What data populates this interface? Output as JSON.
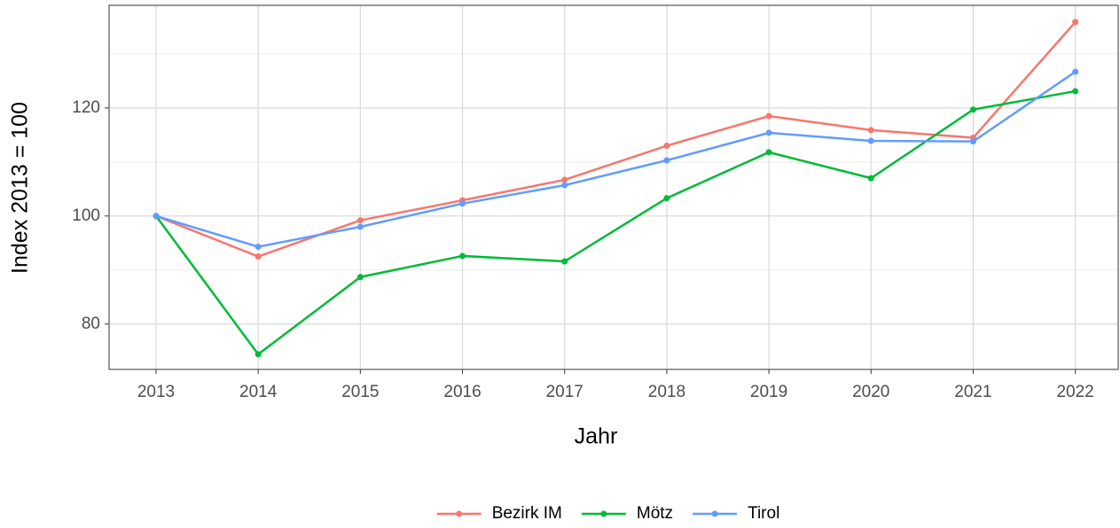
{
  "chart_data": {
    "type": "line",
    "x_label": "Jahr",
    "y_label": "Index  2013  = 100",
    "x": [
      2013,
      2014,
      2015,
      2016,
      2017,
      2018,
      2019,
      2020,
      2021,
      2022
    ],
    "xlim": [
      2012.54,
      2022.42
    ],
    "xticks": [
      2013,
      2014,
      2015,
      2016,
      2017,
      2018,
      2019,
      2020,
      2021,
      2022
    ],
    "ylim": [
      71.6,
      139
    ],
    "yticks": [
      80,
      100,
      120
    ],
    "yminor_ticks": [
      90,
      110,
      130
    ],
    "grid": true,
    "legend": "bottom",
    "series": [
      {
        "name": "Bezirk IM",
        "color": "#F8766D",
        "values": [
          100,
          92.5,
          99.2,
          102.9,
          106.7,
          113,
          118.5,
          115.9,
          114.5,
          135.9
        ]
      },
      {
        "name": "Mötz",
        "color": "#00BA38",
        "values": [
          100,
          74.4,
          88.7,
          92.6,
          91.6,
          103.3,
          111.8,
          107,
          119.7,
          123.1
        ]
      },
      {
        "name": "Tirol",
        "color": "#619CFF",
        "values": [
          100,
          94.3,
          98,
          102.3,
          105.7,
          110.3,
          115.4,
          113.9,
          113.8,
          126.7
        ]
      }
    ]
  }
}
